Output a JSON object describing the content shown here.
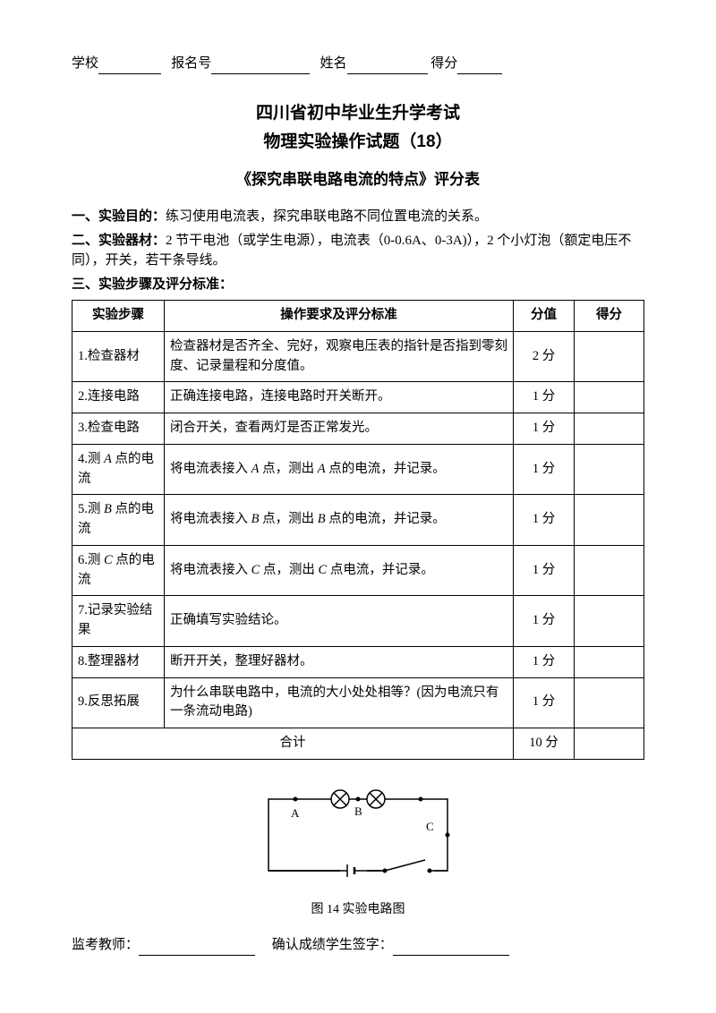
{
  "header": {
    "school": "学校",
    "reg": "报名号",
    "name": "姓名",
    "score": "得分"
  },
  "title1": "四川省初中毕业生升学考试",
  "title2": "物理实验操作试题（18）",
  "subtitle": "《探究串联电路电流的特点》评分表",
  "sec1_label": "一、实验目的：",
  "sec1_text": "练习使用电流表，探究串联电路不同位置电流的关系。",
  "sec2_label": "二、实验器材：",
  "sec2_text": "2 节干电池（或学生电源），电流表（0-0.6A、0-3A)），2 个小灯泡（额定电压不同），开关，若干条导线。",
  "sec3_label": "三、实验步骤及评分标准：",
  "table": {
    "headers": [
      "实验步骤",
      "操作要求及评分标准",
      "分值",
      "得分"
    ],
    "rows": [
      {
        "step": "1.检查器材",
        "desc": "检查器材是否齐全、完好，观察电压表的指针是否指到零刻度、记录量程和分度值。",
        "pts": "2 分"
      },
      {
        "step": "2.连接电路",
        "desc": "正确连接电路，连接电路时开关断开。",
        "pts": "1 分"
      },
      {
        "step": "3.检查电路",
        "desc": "闭合开关，查看两灯是否正常发光。",
        "pts": "1 分"
      },
      {
        "step": "4.测 A 点的电流",
        "desc": "将电流表接入 A 点，测出 A 点的电流，并记录。",
        "pts": "1 分",
        "italic": true
      },
      {
        "step": "5.测 B 点的电流",
        "desc": "将电流表接入 B 点，测出 B 点的电流，并记录。",
        "pts": "1 分",
        "italic": true
      },
      {
        "step": "6.测 C 点的电流",
        "desc": "将电流表接入 C 点，测出 C 点电流，并记录。",
        "pts": "1 分",
        "italic": true
      },
      {
        "step": "7.记录实验结果",
        "desc": "正确填写实验结论。",
        "pts": "1 分"
      },
      {
        "step": "8.整理器材",
        "desc": "断开开关，整理好器材。",
        "pts": "1 分"
      },
      {
        "step": "9.反思拓展",
        "desc": "为什么串联电路中，电流的大小处处相等？(因为电流只有一条流动电路)",
        "pts": "1 分"
      }
    ],
    "total_label": "合计",
    "total_pts": "10 分"
  },
  "circuit": {
    "caption": "图 14 实验电路图",
    "labels": {
      "A": "A",
      "B": "B",
      "C": "C"
    }
  },
  "footer": {
    "proctor": "监考教师：",
    "confirm": "确认成绩学生签字："
  }
}
